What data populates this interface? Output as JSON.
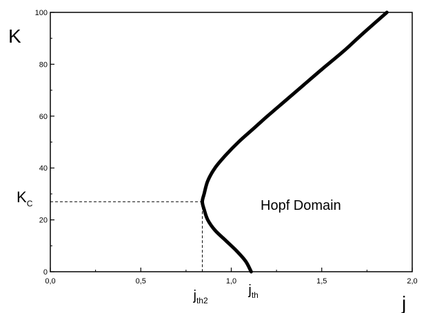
{
  "chart_data": {
    "type": "line",
    "title": "",
    "xlabel": "j",
    "ylabel": "K",
    "xlim": [
      0.0,
      2.0
    ],
    "ylim": [
      0,
      100
    ],
    "x_ticks": [
      {
        "value": 0.0,
        "label": "0,0"
      },
      {
        "value": 0.5,
        "label": "0,5"
      },
      {
        "value": 1.0,
        "label": "1,0"
      },
      {
        "value": 1.5,
        "label": "1,5"
      },
      {
        "value": 2.0,
        "label": "2,0"
      }
    ],
    "y_ticks": [
      {
        "value": 0,
        "label": "0"
      },
      {
        "value": 20,
        "label": "20"
      },
      {
        "value": 40,
        "label": "40"
      },
      {
        "value": 60,
        "label": "60"
      },
      {
        "value": 80,
        "label": "80"
      },
      {
        "value": 100,
        "label": "100"
      }
    ],
    "grid": false,
    "series": [
      {
        "points": [
          {
            "x": 1.11,
            "y": 0
          },
          {
            "x": 1.08,
            "y": 4
          },
          {
            "x": 1.03,
            "y": 8
          },
          {
            "x": 0.97,
            "y": 12
          },
          {
            "x": 0.91,
            "y": 16
          },
          {
            "x": 0.87,
            "y": 20
          },
          {
            "x": 0.85,
            "y": 24
          },
          {
            "x": 0.84,
            "y": 27
          },
          {
            "x": 0.85,
            "y": 30
          },
          {
            "x": 0.87,
            "y": 35
          },
          {
            "x": 0.91,
            "y": 40
          },
          {
            "x": 0.97,
            "y": 45
          },
          {
            "x": 1.04,
            "y": 50
          },
          {
            "x": 1.12,
            "y": 55
          },
          {
            "x": 1.2,
            "y": 60
          },
          {
            "x": 1.3,
            "y": 66
          },
          {
            "x": 1.4,
            "y": 72
          },
          {
            "x": 1.5,
            "y": 78
          },
          {
            "x": 1.62,
            "y": 85
          },
          {
            "x": 1.73,
            "y": 92
          },
          {
            "x": 1.86,
            "y": 100
          }
        ]
      }
    ],
    "reference_lines": {
      "kc": 27,
      "jth2": 0.84,
      "jth": 1.11
    },
    "annotations": {
      "region_label": "Hopf Domain",
      "kc_main": "K",
      "kc_sub": "C",
      "jth2_main": "j",
      "jth2_sub": "th2",
      "jth_main": "j",
      "jth_sub": "th"
    },
    "colors": {
      "curve": "#000000",
      "axes": "#000000",
      "background": "#ffffff"
    }
  }
}
